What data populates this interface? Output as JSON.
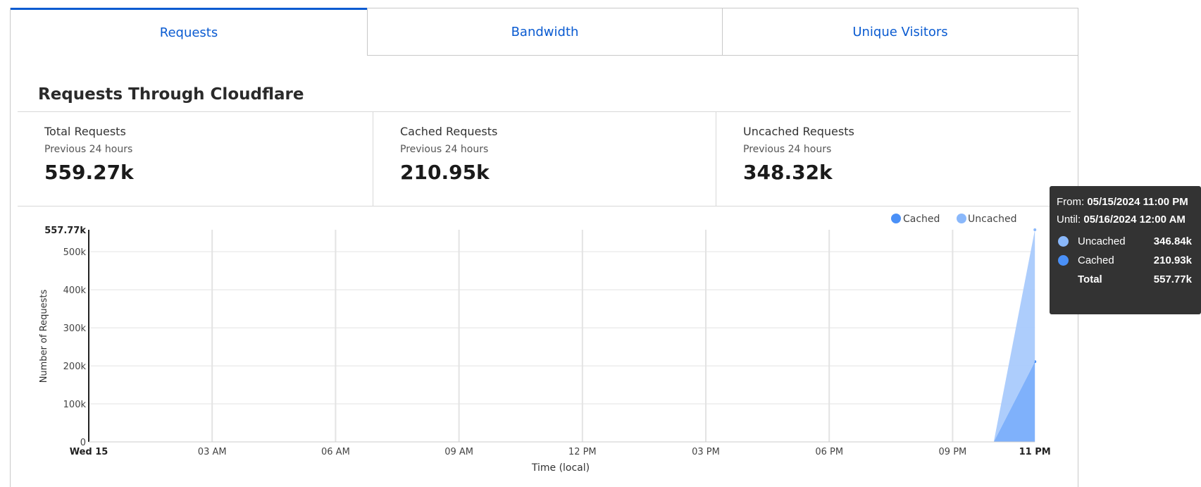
{
  "tabs": [
    {
      "label": "Requests",
      "active": true
    },
    {
      "label": "Bandwidth"
    },
    {
      "label": "Unique Visitors"
    }
  ],
  "title": "Requests Through Cloudflare",
  "stats": [
    {
      "label": "Total Requests",
      "sub": "Previous 24 hours",
      "value": "559.27k"
    },
    {
      "label": "Cached Requests",
      "sub": "Previous 24 hours",
      "value": "210.95k"
    },
    {
      "label": "Uncached Requests",
      "sub": "Previous 24 hours",
      "value": "348.32k"
    }
  ],
  "tooltip": {
    "from_label": "From:",
    "from": "05/15/2024 11:00 PM",
    "until_label": "Until:",
    "until": "05/16/2024 12:00 AM",
    "rows": [
      {
        "name": "Uncached",
        "value": "346.84k"
      },
      {
        "name": "Cached",
        "value": "210.93k"
      },
      {
        "name": "Total",
        "value": "557.77k"
      }
    ]
  },
  "chart_data": {
    "type": "area",
    "stacked": true,
    "ylabel": "Number of Requests",
    "xlabel": "Time (local)",
    "ylim": [
      0,
      557770
    ],
    "yticks": [
      {
        "v": 0,
        "label": "0"
      },
      {
        "v": 100000,
        "label": "100k"
      },
      {
        "v": 200000,
        "label": "200k"
      },
      {
        "v": 300000,
        "label": "300k"
      },
      {
        "v": 400000,
        "label": "400k"
      },
      {
        "v": 500000,
        "label": "500k"
      },
      {
        "v": 557770,
        "label": "557.77k",
        "bold": true
      }
    ],
    "xticks": [
      {
        "h": 0,
        "label": "Wed 15",
        "bold": true
      },
      {
        "h": 3,
        "label": "03 AM"
      },
      {
        "h": 6,
        "label": "06 AM"
      },
      {
        "h": 9,
        "label": "09 AM"
      },
      {
        "h": 12,
        "label": "12 PM"
      },
      {
        "h": 15,
        "label": "03 PM"
      },
      {
        "h": 18,
        "label": "06 PM"
      },
      {
        "h": 21,
        "label": "09 PM"
      },
      {
        "h": 23,
        "label": "11 PM",
        "bold": true
      }
    ],
    "x_hours": [
      22,
      23
    ],
    "legend": {
      "position": "top-right",
      "items": [
        {
          "name": "Cached",
          "color": "#4a90f7"
        },
        {
          "name": "Uncached",
          "color": "#8ab8fb"
        }
      ]
    },
    "series": [
      {
        "name": "Cached",
        "values": [
          0,
          210930
        ],
        "color": "#4a90f7",
        "fill": "#7fb1fb"
      },
      {
        "name": "Uncached",
        "values": [
          0,
          346840
        ],
        "color": "#8ab8fb",
        "fill": "#a9cafc"
      }
    ]
  }
}
